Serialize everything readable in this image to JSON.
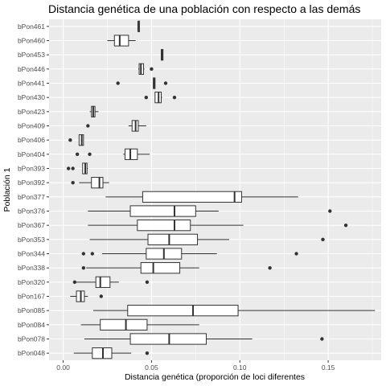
{
  "chart_data": {
    "type": "boxplot",
    "orientation": "horizontal",
    "title": "Distancia genética de una población con respecto a las demás",
    "xlabel": "Distancia genética (proporción de loci diferentes",
    "ylabel": "Población 1",
    "xlim": [
      -0.008,
      0.18
    ],
    "xticks": [
      0.0,
      0.05,
      0.1,
      0.15
    ],
    "xtick_labels": [
      "0.00",
      "0.05",
      "0.10",
      "0.15"
    ],
    "grid": true,
    "background": "#ebebeb",
    "grid_color": "#ffffff",
    "box_fill": "#ffffff",
    "line_color": "#333333",
    "categories": [
      "bPon461",
      "bPon460",
      "bPon453",
      "bPon446",
      "bPon441",
      "bPon430",
      "bPon423",
      "bPon409",
      "bPon406",
      "bPon404",
      "bPon393",
      "bPon392",
      "bPon377",
      "bPon376",
      "bPon367",
      "bPon353",
      "bPon344",
      "bPon338",
      "bPon320",
      "bPon167",
      "bPon085",
      "bPon084",
      "bPon078",
      "bPon048"
    ],
    "boxes": [
      {
        "name": "bPon461",
        "whisker_low": 0.0425,
        "q1": 0.0425,
        "median": 0.0425,
        "q3": 0.0425,
        "whisker_high": 0.0425,
        "outliers": []
      },
      {
        "name": "bPon460",
        "whisker_low": 0.025,
        "q1": 0.029,
        "median": 0.032,
        "q3": 0.037,
        "whisker_high": 0.041,
        "outliers": []
      },
      {
        "name": "bPon453",
        "whisker_low": 0.0555,
        "q1": 0.0555,
        "median": 0.056,
        "q3": 0.0565,
        "whisker_high": 0.0565,
        "outliers": []
      },
      {
        "name": "bPon446",
        "whisker_low": 0.0425,
        "q1": 0.043,
        "median": 0.044,
        "q3": 0.0455,
        "whisker_high": 0.046,
        "outliers": [
          0.05
        ]
      },
      {
        "name": "bPon441",
        "whisker_low": 0.051,
        "q1": 0.051,
        "median": 0.0515,
        "q3": 0.052,
        "whisker_high": 0.052,
        "outliers": [
          0.031,
          0.058
        ]
      },
      {
        "name": "bPon430",
        "whisker_low": 0.052,
        "q1": 0.052,
        "median": 0.054,
        "q3": 0.0555,
        "whisker_high": 0.056,
        "outliers": [
          0.047,
          0.063
        ]
      },
      {
        "name": "bPon423",
        "whisker_low": 0.015,
        "q1": 0.016,
        "median": 0.017,
        "q3": 0.018,
        "whisker_high": 0.02,
        "outliers": []
      },
      {
        "name": "bPon409",
        "whisker_low": 0.037,
        "q1": 0.039,
        "median": 0.041,
        "q3": 0.0425,
        "whisker_high": 0.047,
        "outliers": [
          0.014
        ]
      },
      {
        "name": "bPon406",
        "whisker_low": 0.009,
        "q1": 0.009,
        "median": 0.0105,
        "q3": 0.0115,
        "whisker_high": 0.0115,
        "outliers": [
          0.004
        ]
      },
      {
        "name": "bPon404",
        "whisker_low": 0.034,
        "q1": 0.035,
        "median": 0.038,
        "q3": 0.042,
        "whisker_high": 0.049,
        "outliers": [
          0.008,
          0.015
        ]
      },
      {
        "name": "bPon393",
        "whisker_low": 0.011,
        "q1": 0.011,
        "median": 0.0125,
        "q3": 0.0135,
        "whisker_high": 0.014,
        "outliers": [
          0.003,
          0.0055
        ]
      },
      {
        "name": "bPon392",
        "whisker_low": 0.009,
        "q1": 0.016,
        "median": 0.0205,
        "q3": 0.0225,
        "whisker_high": 0.026,
        "outliers": [
          0.0055
        ]
      },
      {
        "name": "bPon377",
        "whisker_low": 0.024,
        "q1": 0.045,
        "median": 0.097,
        "q3": 0.101,
        "whisker_high": 0.133,
        "outliers": []
      },
      {
        "name": "bPon376",
        "whisker_low": 0.014,
        "q1": 0.038,
        "median": 0.063,
        "q3": 0.075,
        "whisker_high": 0.088,
        "outliers": [
          0.151
        ]
      },
      {
        "name": "bPon367",
        "whisker_low": 0.014,
        "q1": 0.042,
        "median": 0.063,
        "q3": 0.072,
        "whisker_high": 0.102,
        "outliers": [
          0.16
        ]
      },
      {
        "name": "bPon353",
        "whisker_low": 0.015,
        "q1": 0.048,
        "median": 0.06,
        "q3": 0.076,
        "whisker_high": 0.094,
        "outliers": [
          0.147
        ]
      },
      {
        "name": "bPon344",
        "whisker_low": 0.022,
        "q1": 0.047,
        "median": 0.057,
        "q3": 0.067,
        "whisker_high": 0.087,
        "outliers": [
          0.0115,
          0.0165,
          0.132
        ]
      },
      {
        "name": "bPon338",
        "whisker_low": 0.013,
        "q1": 0.044,
        "median": 0.051,
        "q3": 0.066,
        "whisker_high": 0.077,
        "outliers": [
          0.0115,
          0.117
        ]
      },
      {
        "name": "bPon320",
        "whisker_low": 0.0075,
        "q1": 0.0185,
        "median": 0.021,
        "q3": 0.0265,
        "whisker_high": 0.0315,
        "outliers": [
          0.0065,
          0.0475
        ]
      },
      {
        "name": "bPon167",
        "whisker_low": 0.004,
        "q1": 0.0075,
        "median": 0.01,
        "q3": 0.012,
        "whisker_high": 0.014,
        "outliers": [
          0.0215
        ]
      },
      {
        "name": "bPon085",
        "whisker_low": 0.017,
        "q1": 0.0365,
        "median": 0.0735,
        "q3": 0.099,
        "whisker_high": 0.1765,
        "outliers": []
      },
      {
        "name": "bPon084",
        "whisker_low": 0.01,
        "q1": 0.021,
        "median": 0.0355,
        "q3": 0.0475,
        "whisker_high": 0.077,
        "outliers": []
      },
      {
        "name": "bPon078",
        "whisker_low": 0.012,
        "q1": 0.038,
        "median": 0.06,
        "q3": 0.081,
        "whisker_high": 0.107,
        "outliers": [
          0.1465
        ]
      },
      {
        "name": "bPon048",
        "whisker_low": 0.006,
        "q1": 0.0165,
        "median": 0.0225,
        "q3": 0.0275,
        "whisker_high": 0.0385,
        "outliers": [
          0.0475
        ]
      }
    ]
  }
}
